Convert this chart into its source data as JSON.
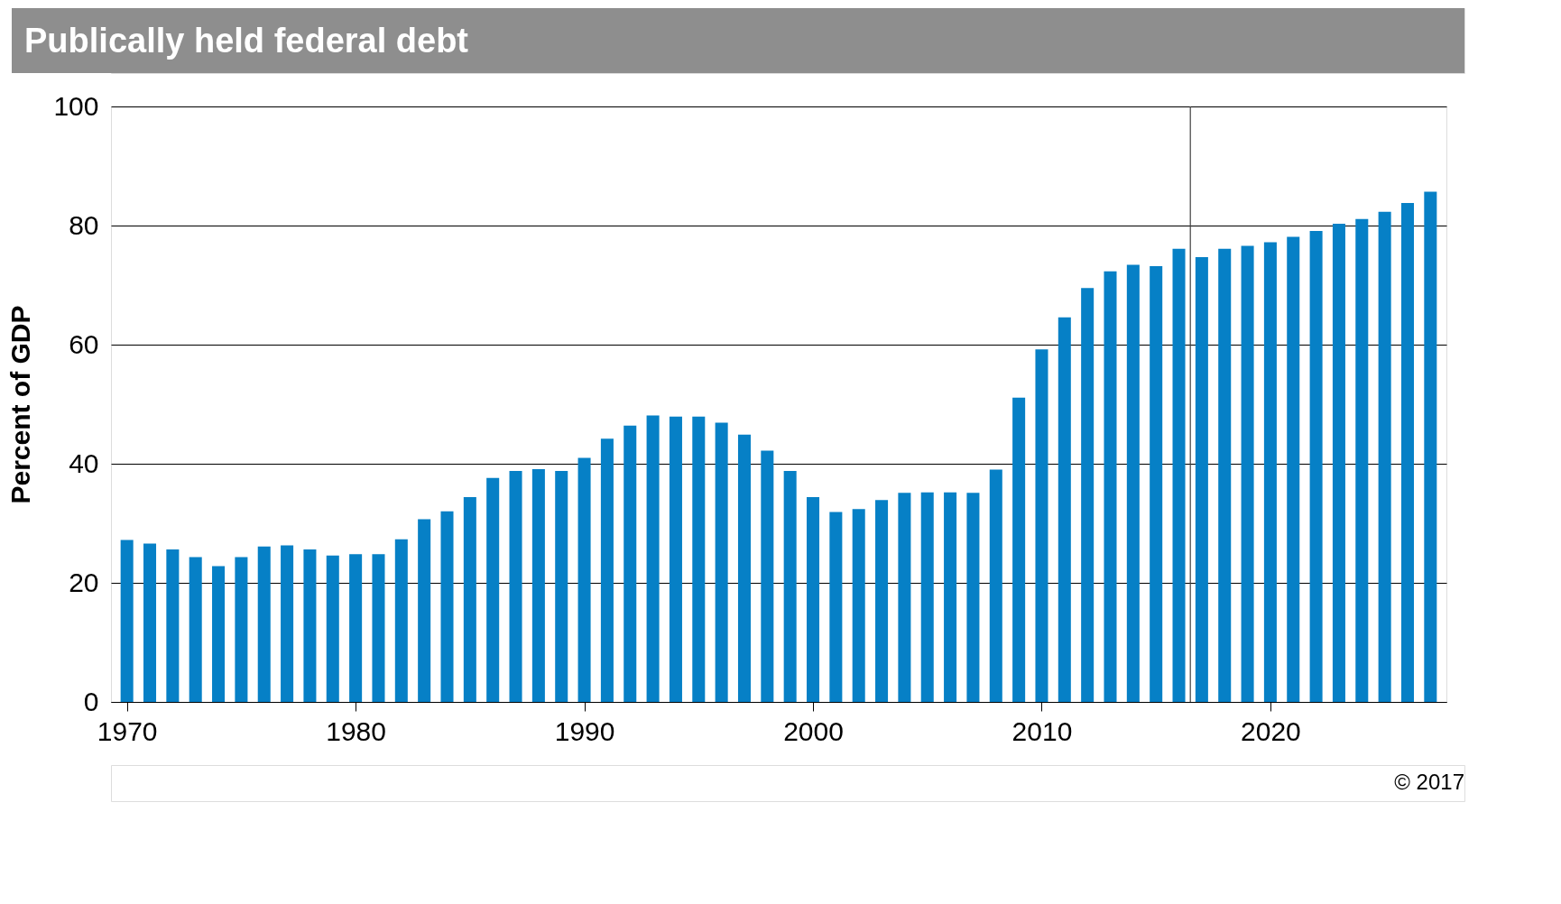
{
  "chart_data": {
    "type": "bar",
    "title": "Publically held federal debt",
    "ylabel": "Percent of GDP",
    "x": [
      1970,
      1971,
      1972,
      1973,
      1974,
      1975,
      1976,
      1977,
      1978,
      1979,
      1980,
      1981,
      1982,
      1983,
      1984,
      1985,
      1986,
      1987,
      1988,
      1989,
      1990,
      1991,
      1992,
      1993,
      1994,
      1995,
      1996,
      1997,
      1998,
      1999,
      2000,
      2001,
      2002,
      2003,
      2004,
      2005,
      2006,
      2007,
      2008,
      2009,
      2010,
      2011,
      2012,
      2013,
      2014,
      2015,
      2016,
      2017,
      2018,
      2019,
      2020,
      2021,
      2022,
      2023,
      2024,
      2025,
      2026,
      2027
    ],
    "values": [
      27.2,
      26.6,
      25.6,
      24.3,
      22.8,
      24.3,
      26.1,
      26.3,
      25.6,
      24.6,
      24.8,
      24.8,
      27.3,
      30.7,
      32.0,
      34.4,
      37.6,
      38.8,
      39.1,
      38.8,
      41.0,
      44.2,
      46.4,
      48.1,
      47.9,
      47.9,
      46.9,
      44.9,
      42.2,
      38.8,
      34.4,
      31.9,
      32.4,
      33.9,
      35.1,
      35.2,
      35.2,
      35.1,
      39.0,
      51.1,
      59.2,
      64.6,
      69.5,
      72.3,
      73.4,
      73.2,
      76.1,
      74.7,
      76.1,
      76.6,
      77.2,
      78.1,
      79.1,
      80.3,
      81.1,
      82.3,
      83.8,
      85.7
    ],
    "color": "#0680c6",
    "xlim": [
      1969.5,
      2027.5
    ],
    "xticks": [
      1970,
      1980,
      1990,
      2000,
      2010,
      2020
    ],
    "ylim": [
      0,
      100
    ],
    "yticks": [
      0,
      20,
      40,
      60,
      80,
      100
    ],
    "grid": "y",
    "ref_lines": [
      {
        "axis": "x",
        "value": 2016.5,
        "label": null,
        "color": "#404040"
      }
    ],
    "annotations": [
      "© 2017"
    ]
  }
}
